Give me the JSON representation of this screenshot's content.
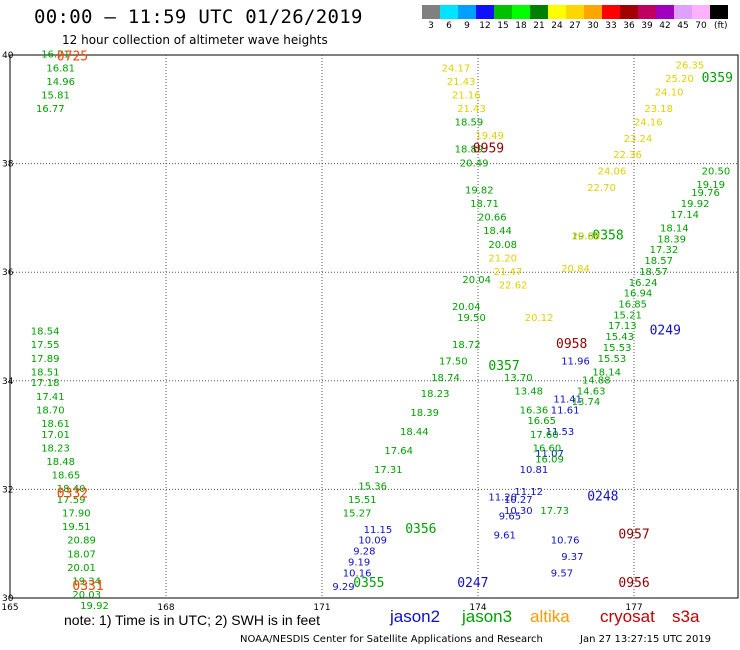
{
  "header": {
    "title": "00:00 – 11:59 UTC 01/26/2019",
    "subtitle": "12 hour collection of altimeter wave heights"
  },
  "colorbar": {
    "unit": "(ft)",
    "bins": [
      {
        "label": "3",
        "color": "#808080"
      },
      {
        "label": "6",
        "color": "#00e5ff"
      },
      {
        "label": "9",
        "color": "#00a0ff"
      },
      {
        "label": "12",
        "color": "#1010ff"
      },
      {
        "label": "15",
        "color": "#00c000"
      },
      {
        "label": "18",
        "color": "#00ff00"
      },
      {
        "label": "21",
        "color": "#008000"
      },
      {
        "label": "24",
        "color": "#ffff00"
      },
      {
        "label": "27",
        "color": "#ffd700"
      },
      {
        "label": "30",
        "color": "#ffa500"
      },
      {
        "label": "33",
        "color": "#ff0000"
      },
      {
        "label": "36",
        "color": "#a00000"
      },
      {
        "label": "39",
        "color": "#c00060"
      },
      {
        "label": "42",
        "color": "#a000c0"
      },
      {
        "label": "45",
        "color": "#e0a0ff"
      },
      {
        "label": "70",
        "color": "#ffb0ff"
      },
      {
        "label": "",
        "color": "#000000"
      }
    ]
  },
  "axes": {
    "lat_labels": [
      "40",
      "38",
      "36",
      "34",
      "32",
      "30"
    ],
    "lon_labels": [
      "165",
      "168",
      "171",
      "174",
      "177"
    ],
    "lat_range": [
      30,
      40
    ],
    "lon_range": [
      165,
      179
    ]
  },
  "chart_data": {
    "type": "scatter",
    "title": "00:00 – 11:59 UTC 01/26/2019",
    "subtitle": "12 hour collection of altimeter wave heights",
    "xlabel": "",
    "ylabel": "",
    "xlim": [
      165,
      179
    ],
    "ylim": [
      30,
      40
    ],
    "grid": true,
    "series": [
      {
        "name": "jason2",
        "color": "#1010c0",
        "points": [
          {
            "lon": 173.6,
            "lat": 30.2,
            "v": "0247"
          },
          {
            "lon": 171.2,
            "lat": 30.15,
            "v": "9.29"
          },
          {
            "lon": 171.4,
            "lat": 30.4,
            "v": "10.16"
          },
          {
            "lon": 171.5,
            "lat": 30.6,
            "v": "9.19"
          },
          {
            "lon": 171.6,
            "lat": 30.8,
            "v": "9.28"
          },
          {
            "lon": 171.7,
            "lat": 31.0,
            "v": "10.09"
          },
          {
            "lon": 171.8,
            "lat": 31.2,
            "v": "11.15"
          },
          {
            "lon": 176.1,
            "lat": 31.8,
            "v": "0248"
          },
          {
            "lon": 175.4,
            "lat": 30.4,
            "v": "9.57"
          },
          {
            "lon": 175.6,
            "lat": 30.7,
            "v": "9.37"
          },
          {
            "lon": 175.4,
            "lat": 31.0,
            "v": "10.76"
          },
          {
            "lon": 174.3,
            "lat": 31.1,
            "v": "9.61"
          },
          {
            "lon": 174.4,
            "lat": 31.45,
            "v": "9.65"
          },
          {
            "lon": 174.5,
            "lat": 31.55,
            "v": "10.30"
          },
          {
            "lon": 174.5,
            "lat": 31.75,
            "v": "10.27"
          },
          {
            "lon": 174.7,
            "lat": 31.9,
            "v": "11.12"
          },
          {
            "lon": 174.8,
            "lat": 32.3,
            "v": "10.81"
          },
          {
            "lon": 175.1,
            "lat": 32.6,
            "v": "11.07"
          },
          {
            "lon": 175.3,
            "lat": 33.0,
            "v": "11.53"
          },
          {
            "lon": 175.4,
            "lat": 33.4,
            "v": "11.61"
          },
          {
            "lon": 175.45,
            "lat": 33.6,
            "v": "11.41"
          },
          {
            "lon": 175.6,
            "lat": 34.3,
            "v": "11.96"
          },
          {
            "lon": 177.3,
            "lat": 34.85,
            "v": "0249"
          },
          {
            "lon": 174.2,
            "lat": 31.8,
            "v": "11.20"
          }
        ]
      },
      {
        "name": "jason3",
        "color": "#00a000",
        "points": [
          {
            "lon": 171.6,
            "lat": 30.2,
            "v": "0355"
          },
          {
            "lon": 172.6,
            "lat": 31.2,
            "v": "0356"
          },
          {
            "lon": 171.4,
            "lat": 31.5,
            "v": "15.27"
          },
          {
            "lon": 171.5,
            "lat": 31.75,
            "v": "15.51"
          },
          {
            "lon": 171.7,
            "lat": 32.0,
            "v": "15.36"
          },
          {
            "lon": 172.0,
            "lat": 32.3,
            "v": "17.31"
          },
          {
            "lon": 172.2,
            "lat": 32.65,
            "v": "17.64"
          },
          {
            "lon": 172.5,
            "lat": 33.0,
            "v": "18.44"
          },
          {
            "lon": 172.7,
            "lat": 33.35,
            "v": "18.39"
          },
          {
            "lon": 172.9,
            "lat": 33.7,
            "v": "18.23"
          },
          {
            "lon": 173.1,
            "lat": 34.0,
            "v": "18.74"
          },
          {
            "lon": 173.25,
            "lat": 34.3,
            "v": "17.50"
          },
          {
            "lon": 173.5,
            "lat": 34.6,
            "v": "18.72"
          },
          {
            "lon": 173.6,
            "lat": 35.1,
            "v": "19.50"
          },
          {
            "lon": 173.5,
            "lat": 35.3,
            "v": "20.04"
          },
          {
            "lon": 174.2,
            "lat": 34.2,
            "v": "0357"
          },
          {
            "lon": 174.5,
            "lat": 34.0,
            "v": "13.70"
          },
          {
            "lon": 174.7,
            "lat": 33.75,
            "v": "13.48"
          },
          {
            "lon": 174.8,
            "lat": 33.4,
            "v": "16.36"
          },
          {
            "lon": 174.95,
            "lat": 33.2,
            "v": "16.65"
          },
          {
            "lon": 175.0,
            "lat": 32.95,
            "v": "17.60"
          },
          {
            "lon": 175.05,
            "lat": 32.7,
            "v": "16.60"
          },
          {
            "lon": 175.1,
            "lat": 32.5,
            "v": "16.09"
          },
          {
            "lon": 175.2,
            "lat": 31.55,
            "v": "17.73"
          },
          {
            "lon": 176.2,
            "lat": 36.6,
            "v": "0358"
          },
          {
            "lon": 175.8,
            "lat": 36.6,
            "v": "19.87"
          },
          {
            "lon": 178.3,
            "lat": 39.5,
            "v": "0359"
          },
          {
            "lon": 178.3,
            "lat": 37.8,
            "v": "20.50"
          },
          {
            "lon": 178.2,
            "lat": 37.55,
            "v": "19.19"
          },
          {
            "lon": 178.1,
            "lat": 37.4,
            "v": "19.76"
          },
          {
            "lon": 177.9,
            "lat": 37.2,
            "v": "19.92"
          },
          {
            "lon": 177.7,
            "lat": 37.0,
            "v": "17.14"
          },
          {
            "lon": 177.5,
            "lat": 36.75,
            "v": "18.14"
          },
          {
            "lon": 177.45,
            "lat": 36.55,
            "v": "18.39"
          },
          {
            "lon": 177.3,
            "lat": 36.35,
            "v": "17.32"
          },
          {
            "lon": 177.2,
            "lat": 36.15,
            "v": "18.57"
          },
          {
            "lon": 177.1,
            "lat": 35.95,
            "v": "18.57"
          },
          {
            "lon": 176.9,
            "lat": 35.75,
            "v": "16.24"
          },
          {
            "lon": 176.8,
            "lat": 35.55,
            "v": "16.94"
          },
          {
            "lon": 176.7,
            "lat": 35.35,
            "v": "16.85"
          },
          {
            "lon": 176.6,
            "lat": 35.15,
            "v": "15.21"
          },
          {
            "lon": 176.5,
            "lat": 34.95,
            "v": "17.13"
          },
          {
            "lon": 176.45,
            "lat": 34.75,
            "v": "15.43"
          },
          {
            "lon": 176.4,
            "lat": 34.55,
            "v": "15.53"
          },
          {
            "lon": 176.3,
            "lat": 34.35,
            "v": "15.53"
          },
          {
            "lon": 176.2,
            "lat": 34.1,
            "v": "18.14"
          },
          {
            "lon": 176.0,
            "lat": 33.95,
            "v": "14.88"
          },
          {
            "lon": 175.9,
            "lat": 33.75,
            "v": "14.63"
          },
          {
            "lon": 175.8,
            "lat": 33.55,
            "v": "13.74"
          },
          {
            "lon": 165.6,
            "lat": 39.95,
            "v": "16.71"
          },
          {
            "lon": 165.7,
            "lat": 39.7,
            "v": "16.81"
          },
          {
            "lon": 165.7,
            "lat": 39.45,
            "v": "14.96"
          },
          {
            "lon": 165.6,
            "lat": 39.2,
            "v": "15.81"
          },
          {
            "lon": 165.5,
            "lat": 38.95,
            "v": "16.77"
          },
          {
            "lon": 165.4,
            "lat": 34.85,
            "v": "18.54"
          },
          {
            "lon": 165.4,
            "lat": 34.6,
            "v": "17.55"
          },
          {
            "lon": 165.4,
            "lat": 34.35,
            "v": "17.89"
          },
          {
            "lon": 165.4,
            "lat": 34.1,
            "v": "18.51"
          },
          {
            "lon": 165.4,
            "lat": 33.9,
            "v": "17.18"
          },
          {
            "lon": 165.5,
            "lat": 33.65,
            "v": "17.41"
          },
          {
            "lon": 165.5,
            "lat": 33.4,
            "v": "18.70"
          },
          {
            "lon": 165.6,
            "lat": 33.15,
            "v": "18.61"
          },
          {
            "lon": 165.6,
            "lat": 32.95,
            "v": "17.01"
          },
          {
            "lon": 165.6,
            "lat": 32.7,
            "v": "18.23"
          },
          {
            "lon": 165.7,
            "lat": 32.45,
            "v": "18.48"
          },
          {
            "lon": 165.8,
            "lat": 32.2,
            "v": "18.65"
          },
          {
            "lon": 165.9,
            "lat": 31.95,
            "v": "18.40"
          },
          {
            "lon": 165.9,
            "lat": 31.75,
            "v": "17.59"
          },
          {
            "lon": 166.0,
            "lat": 31.5,
            "v": "17.90"
          },
          {
            "lon": 166.0,
            "lat": 31.25,
            "v": "19.51"
          },
          {
            "lon": 166.1,
            "lat": 31.0,
            "v": "20.89"
          },
          {
            "lon": 166.1,
            "lat": 30.75,
            "v": "18.07"
          },
          {
            "lon": 166.1,
            "lat": 30.5,
            "v": "20.01"
          },
          {
            "lon": 166.2,
            "lat": 30.25,
            "v": "19.34"
          },
          {
            "lon": 166.2,
            "lat": 30.0,
            "v": "20.03"
          },
          {
            "lon": 166.35,
            "lat": 29.8,
            "v": "19.92"
          },
          {
            "lon": 173.55,
            "lat": 38.7,
            "v": "18.59"
          },
          {
            "lon": 173.55,
            "lat": 38.2,
            "v": "18.89"
          },
          {
            "lon": 173.65,
            "lat": 37.95,
            "v": "20.49"
          },
          {
            "lon": 173.75,
            "lat": 37.45,
            "v": "19.82"
          },
          {
            "lon": 173.85,
            "lat": 37.2,
            "v": "18.71"
          },
          {
            "lon": 174.0,
            "lat": 36.95,
            "v": "20.66"
          },
          {
            "lon": 174.1,
            "lat": 36.7,
            "v": "18.44"
          },
          {
            "lon": 174.2,
            "lat": 36.45,
            "v": "20.08"
          },
          {
            "lon": 173.7,
            "lat": 35.8,
            "v": "20.04"
          }
        ]
      },
      {
        "name": "altika",
        "color": "#e0d000",
        "points": [
          {
            "lon": 173.3,
            "lat": 39.7,
            "v": "24.17"
          },
          {
            "lon": 173.4,
            "lat": 39.45,
            "v": "21.43"
          },
          {
            "lon": 173.5,
            "lat": 39.2,
            "v": "21.16"
          },
          {
            "lon": 173.6,
            "lat": 38.95,
            "v": "21.43"
          },
          {
            "lon": 173.95,
            "lat": 38.45,
            "v": "19.49"
          },
          {
            "lon": 174.2,
            "lat": 36.2,
            "v": "21.20"
          },
          {
            "lon": 174.3,
            "lat": 35.95,
            "v": "21.47"
          },
          {
            "lon": 174.4,
            "lat": 35.7,
            "v": "22.62"
          },
          {
            "lon": 174.9,
            "lat": 35.1,
            "v": "20.12"
          },
          {
            "lon": 175.6,
            "lat": 36.0,
            "v": "20.84"
          },
          {
            "lon": 175.8,
            "lat": 36.6,
            "v": "20.09"
          },
          {
            "lon": 177.8,
            "lat": 39.75,
            "v": "26.35"
          },
          {
            "lon": 177.6,
            "lat": 39.5,
            "v": "25.20"
          },
          {
            "lon": 177.4,
            "lat": 39.25,
            "v": "24.10"
          },
          {
            "lon": 177.2,
            "lat": 38.95,
            "v": "23.18"
          },
          {
            "lon": 177.0,
            "lat": 38.7,
            "v": "24.16"
          },
          {
            "lon": 176.8,
            "lat": 38.4,
            "v": "23.24"
          },
          {
            "lon": 176.6,
            "lat": 38.1,
            "v": "22.36"
          },
          {
            "lon": 176.3,
            "lat": 37.8,
            "v": "24.06"
          },
          {
            "lon": 176.1,
            "lat": 37.5,
            "v": "22.70"
          }
        ]
      },
      {
        "name": "cryosat",
        "color": "#900000",
        "points": [
          {
            "lon": 173.9,
            "lat": 38.2,
            "v": "0959"
          },
          {
            "lon": 175.5,
            "lat": 34.6,
            "v": "0958"
          },
          {
            "lon": 176.7,
            "lat": 31.1,
            "v": "0957"
          },
          {
            "lon": 176.7,
            "lat": 30.2,
            "v": "0956"
          }
        ]
      },
      {
        "name": "s3a",
        "color": "#ff4000",
        "points": [
          {
            "lon": 165.9,
            "lat": 39.9,
            "v": "0725"
          },
          {
            "lon": 165.9,
            "lat": 31.85,
            "v": "0332"
          },
          {
            "lon": 166.2,
            "lat": 30.15,
            "v": "0331"
          }
        ]
      }
    ]
  },
  "footer": {
    "note": "note:  1) Time is in UTC;  2) SWH is in feet",
    "legend": [
      {
        "label": "jason2",
        "color": "#1010c0"
      },
      {
        "label": "jason3",
        "color": "#00a000"
      },
      {
        "label": "altika",
        "color": "#ff9900"
      },
      {
        "label": "cryosat",
        "color": "#c00000"
      },
      {
        "label": "s3a",
        "color": "#c00000"
      }
    ],
    "credit": "NOAA/NESDIS Center for Satellite Applications and Research",
    "timestamp": "Jan 27 13:27:15 UTC 2019"
  }
}
